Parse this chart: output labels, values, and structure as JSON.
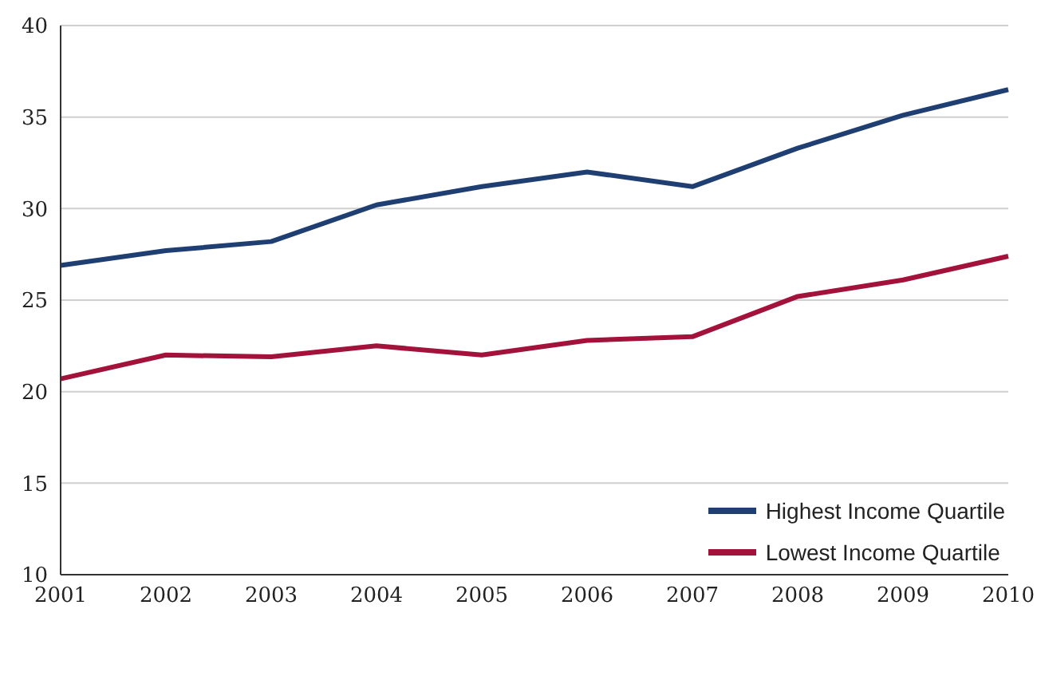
{
  "chart_data": {
    "type": "line",
    "categories": [
      "2001",
      "2002",
      "2003",
      "2004",
      "2005",
      "2006",
      "2007",
      "2008",
      "2009",
      "2010"
    ],
    "series": [
      {
        "name": "Highest Income Quartile",
        "color": "#1f3f73",
        "values": [
          26.9,
          27.7,
          28.2,
          30.2,
          31.2,
          32.0,
          31.2,
          33.3,
          35.1,
          36.5
        ]
      },
      {
        "name": "Lowest Income Quartile",
        "color": "#a3123a",
        "values": [
          20.7,
          22.0,
          21.9,
          22.5,
          22.0,
          22.8,
          23.0,
          25.2,
          26.1,
          27.4
        ]
      }
    ],
    "ylim": [
      10,
      40
    ],
    "yticks": [
      10,
      15,
      20,
      25,
      30,
      35,
      40
    ],
    "grid": "y",
    "legend": "bottom right",
    "marker": "none",
    "line_style": "solid"
  }
}
